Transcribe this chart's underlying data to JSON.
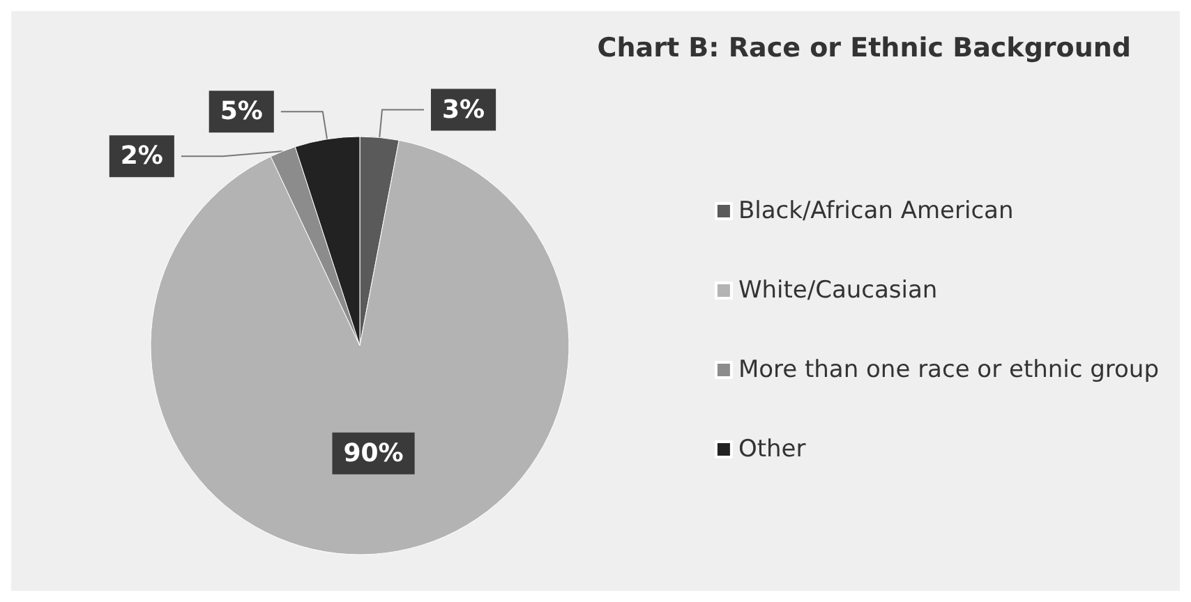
{
  "chart_data": {
    "type": "pie",
    "title": "Chart B: Race or Ethnic Background",
    "categories": [
      "Black/African American",
      "White/Caucasian",
      "More than one race or ethnic group",
      "Other"
    ],
    "values": [
      3,
      90,
      2,
      5
    ],
    "colors": [
      "#5a5a5a",
      "#b3b3b3",
      "#8c8c8c",
      "#222222"
    ],
    "value_labels": [
      "3%",
      "90%",
      "2%",
      "5%"
    ],
    "legend": "right"
  }
}
